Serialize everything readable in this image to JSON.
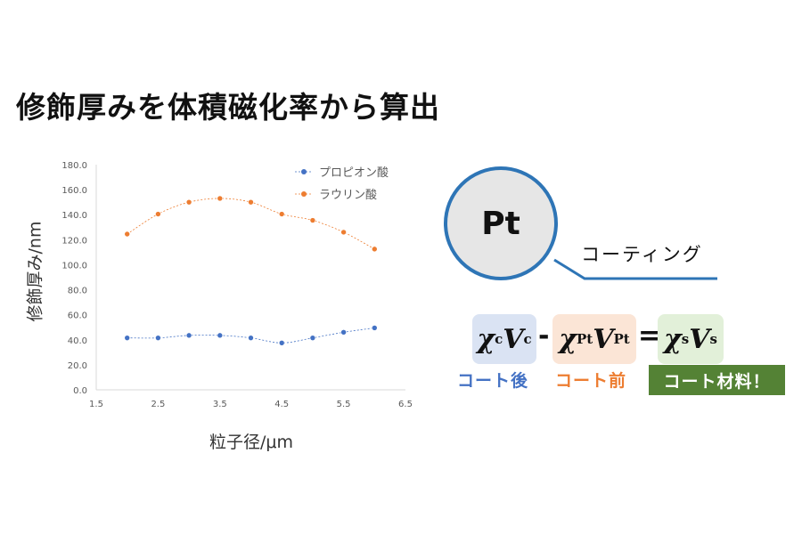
{
  "slide": {
    "title": "修飾厚みを体積磁化率から算出"
  },
  "chart_data": {
    "type": "line",
    "ylabel": "修飾厚み/nm",
    "xlabel": "粒子径/μm",
    "xlim": [
      1.5,
      6.5
    ],
    "ylim": [
      0,
      180
    ],
    "xticks": [
      "1.5",
      "2.5",
      "3.5",
      "4.5",
      "5.5",
      "6.5"
    ],
    "yticks": [
      "0.0",
      "20.0",
      "40.0",
      "60.0",
      "80.0",
      "100.0",
      "120.0",
      "140.0",
      "160.0",
      "180.0"
    ],
    "legend_position": "top-right",
    "x": [
      2.0,
      2.5,
      3.0,
      3.5,
      4.0,
      4.5,
      5.0,
      5.5,
      6.0
    ],
    "series": [
      {
        "name": "プロピオン酸",
        "color": "#4472c4",
        "values": [
          41.5,
          41.5,
          43.5,
          43.5,
          41.5,
          37.5,
          41.5,
          46.0,
          49.5
        ]
      },
      {
        "name": "ラウリン酸",
        "color": "#ed7d31",
        "values": [
          124.5,
          140.5,
          150.0,
          153.0,
          150.0,
          140.5,
          135.5,
          126.0,
          112.5
        ]
      }
    ]
  },
  "diagram": {
    "pt_label": "Pt",
    "coating_label": "コーティング",
    "circle_color": "#2e75b6"
  },
  "formula": {
    "chi": "χ",
    "v": "V",
    "sub_c": "c",
    "sub_pt": "Pt",
    "sub_s": "s",
    "minus": "-",
    "equals": "=",
    "label_after": "コート後",
    "label_before": "コート前",
    "label_material": "コート材料！",
    "colors": {
      "after_bg": "#dae3f3",
      "before_bg": "#fbe5d6",
      "material_bg": "#e2f0d9",
      "material_label_bg": "#548235",
      "after_text": "#4472c4",
      "before_text": "#ed7d31"
    }
  }
}
